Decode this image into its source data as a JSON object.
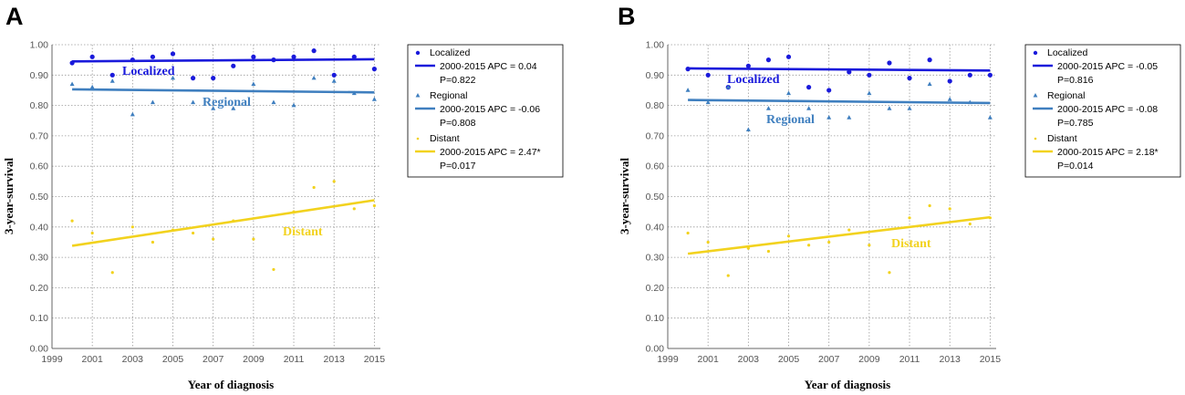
{
  "chart_data": [
    {
      "panel": "A",
      "type": "scatter",
      "xlabel": "Year of diagnosis",
      "ylabel": "3-year-survival",
      "xlim": [
        1999,
        2015.3
      ],
      "ylim": [
        0,
        1
      ],
      "xticks": [
        1999,
        2001,
        2003,
        2005,
        2007,
        2009,
        2011,
        2013,
        2015
      ],
      "xtick_labels": [
        "1999",
        "2001",
        "2003",
        "2005",
        "2007",
        "2009",
        "2011",
        "2013",
        "2015"
      ],
      "yticks": [
        0,
        0.1,
        0.2,
        0.3,
        0.4,
        0.5,
        0.6,
        0.7,
        0.8,
        0.9,
        1.0
      ],
      "ytick_labels": [
        "0.00",
        "0.10",
        "0.20",
        "0.30",
        "0.40",
        "0.50",
        "0.60",
        "0.70",
        "0.80",
        "0.90",
        "1.00"
      ],
      "grid": true,
      "legend_position": "right",
      "series": [
        {
          "name": "Localized",
          "label": "Localized",
          "marker": "circle",
          "color": "#1a1adb",
          "x": [
            2000,
            2001,
            2002,
            2003,
            2004,
            2005,
            2006,
            2007,
            2008,
            2009,
            2010,
            2011,
            2012,
            2013,
            2014,
            2015
          ],
          "values": [
            0.94,
            0.96,
            0.9,
            0.95,
            0.96,
            0.97,
            0.89,
            0.89,
            0.93,
            0.96,
            0.95,
            0.96,
            0.98,
            0.9,
            0.96,
            0.92
          ],
          "trend": [
            0.945,
            0.952
          ],
          "trend_label": "2000-2015 APC = 0.04",
          "p_label": "P=0.822",
          "annotation": "Localized"
        },
        {
          "name": "Regional",
          "label": "Regional",
          "marker": "triangle",
          "color": "#3f7fbf",
          "x": [
            2000,
            2001,
            2002,
            2003,
            2004,
            2005,
            2006,
            2007,
            2008,
            2009,
            2010,
            2011,
            2012,
            2013,
            2014,
            2015
          ],
          "values": [
            0.87,
            0.86,
            0.88,
            0.77,
            0.81,
            0.89,
            0.81,
            0.79,
            0.79,
            0.87,
            0.81,
            0.8,
            0.89,
            0.88,
            0.84,
            0.82
          ],
          "trend": [
            0.853,
            0.843
          ],
          "trend_label": "2000-2015 APC = -0.06",
          "p_label": "P=0.808",
          "annotation": "Regional"
        },
        {
          "name": "Distant",
          "label": "Distant",
          "marker": "dot",
          "color": "#f2d21e",
          "x": [
            2000,
            2001,
            2002,
            2003,
            2004,
            2005,
            2006,
            2007,
            2008,
            2009,
            2010,
            2011,
            2012,
            2013,
            2014,
            2015
          ],
          "values": [
            0.42,
            0.38,
            0.25,
            0.4,
            0.35,
            0.39,
            0.38,
            0.36,
            0.42,
            0.36,
            0.26,
            0.45,
            0.53,
            0.55,
            0.46,
            0.47
          ],
          "trend": [
            0.338,
            0.488
          ],
          "trend_label": "2000-2015 APC = 2.47*",
          "p_label": "P=0.017",
          "annotation": "Distant"
        }
      ]
    },
    {
      "panel": "B",
      "type": "scatter",
      "xlabel": "Year of diagnosis",
      "ylabel": "3-year-survival",
      "xlim": [
        1999,
        2015.3
      ],
      "ylim": [
        0,
        1
      ],
      "xticks": [
        1999,
        2001,
        2003,
        2005,
        2007,
        2009,
        2011,
        2013,
        2015
      ],
      "xtick_labels": [
        "1999",
        "2001",
        "2003",
        "2005",
        "2007",
        "2009",
        "2011",
        "2013",
        "2015"
      ],
      "yticks": [
        0,
        0.1,
        0.2,
        0.3,
        0.4,
        0.5,
        0.6,
        0.7,
        0.8,
        0.9,
        1.0
      ],
      "ytick_labels": [
        "0.00",
        "0.10",
        "0.20",
        "0.30",
        "0.40",
        "0.50",
        "0.60",
        "0.70",
        "0.80",
        "0.90",
        "1.00"
      ],
      "grid": true,
      "legend_position": "right",
      "series": [
        {
          "name": "Localized",
          "label": "Localized",
          "marker": "circle",
          "color": "#1a1adb",
          "x": [
            2000,
            2001,
            2002,
            2003,
            2004,
            2005,
            2006,
            2007,
            2008,
            2009,
            2010,
            2011,
            2012,
            2013,
            2014,
            2015
          ],
          "values": [
            0.92,
            0.9,
            0.86,
            0.93,
            0.95,
            0.96,
            0.86,
            0.85,
            0.91,
            0.9,
            0.94,
            0.89,
            0.95,
            0.88,
            0.9,
            0.9
          ],
          "trend": [
            0.922,
            0.915
          ],
          "trend_label": "2000-2015 APC = -0.05",
          "p_label": "P=0.816",
          "annotation": "Localized"
        },
        {
          "name": "Regional",
          "label": "Regional",
          "marker": "triangle",
          "color": "#3f7fbf",
          "x": [
            2000,
            2001,
            2002,
            2003,
            2004,
            2005,
            2006,
            2007,
            2008,
            2009,
            2010,
            2011,
            2012,
            2013,
            2014,
            2015
          ],
          "values": [
            0.85,
            0.81,
            0.86,
            0.72,
            0.79,
            0.84,
            0.79,
            0.76,
            0.76,
            0.84,
            0.79,
            0.79,
            0.87,
            0.82,
            0.81,
            0.76
          ],
          "trend": [
            0.818,
            0.808
          ],
          "trend_label": "2000-2015 APC = -0.08",
          "p_label": "P=0.785",
          "annotation": "Regional"
        },
        {
          "name": "Distant",
          "label": "Distant",
          "marker": "dot",
          "color": "#f2d21e",
          "x": [
            2000,
            2001,
            2002,
            2003,
            2004,
            2005,
            2006,
            2007,
            2008,
            2009,
            2010,
            2011,
            2012,
            2013,
            2014,
            2015
          ],
          "values": [
            0.38,
            0.35,
            0.24,
            0.33,
            0.32,
            0.37,
            0.34,
            0.35,
            0.39,
            0.34,
            0.25,
            0.43,
            0.47,
            0.46,
            0.41,
            0.43
          ],
          "trend": [
            0.312,
            0.432
          ],
          "trend_label": "2000-2015 APC = 2.18*",
          "p_label": "P=0.014",
          "annotation": "Distant"
        }
      ]
    }
  ]
}
